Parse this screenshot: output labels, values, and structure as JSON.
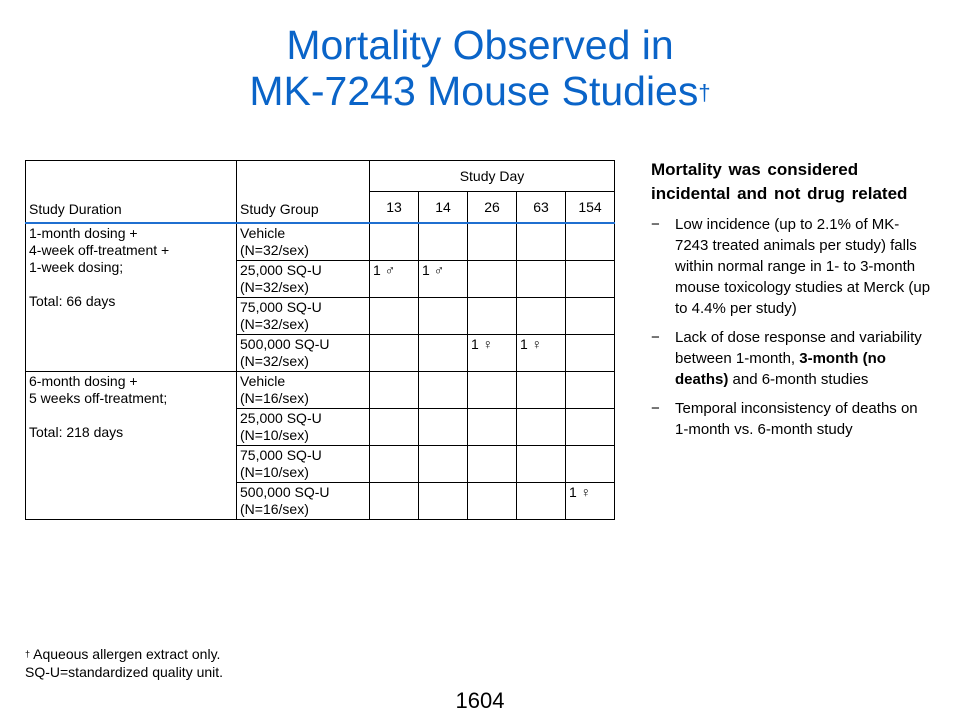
{
  "title": {
    "line1": "Mortality Observed in",
    "line2": "MK-7243 Mouse Studies",
    "dagger": "†"
  },
  "table": {
    "study_day_header": "Study Day",
    "col_duration": "Study Duration",
    "col_group": "Study Group",
    "days": [
      "13",
      "14",
      "26",
      "63",
      "154"
    ],
    "studies": [
      {
        "duration_lines": [
          "1-month dosing +",
          "4-week off-treatment +",
          "1-week dosing;",
          "",
          "Total: 66 days"
        ],
        "groups": [
          {
            "name": "Vehicle",
            "n": "(N=32/sex)",
            "cells": [
              "",
              "",
              "",
              "",
              ""
            ]
          },
          {
            "name": "25,000 SQ-U",
            "n": "(N=32/sex)",
            "cells": [
              "1 ♂",
              "1 ♂",
              "",
              "",
              ""
            ]
          },
          {
            "name": "75,000 SQ-U",
            "n": "(N=32/sex)",
            "cells": [
              "",
              "",
              "",
              "",
              ""
            ]
          },
          {
            "name": "500,000 SQ-U",
            "n": "(N=32/sex)",
            "cells": [
              "",
              "",
              "1 ♀",
              "1 ♀",
              ""
            ]
          }
        ]
      },
      {
        "duration_lines": [
          "6-month dosing +",
          "5 weeks off-treatment;",
          "",
          "Total: 218 days"
        ],
        "groups": [
          {
            "name": "Vehicle",
            "n": "(N=16/sex)",
            "cells": [
              "",
              "",
              "",
              "",
              ""
            ]
          },
          {
            "name": "25,000 SQ-U",
            "n": "(N=10/sex)",
            "cells": [
              "",
              "",
              "",
              "",
              ""
            ]
          },
          {
            "name": "75,000 SQ-U",
            "n": "(N=10/sex)",
            "cells": [
              "",
              "",
              "",
              "",
              ""
            ]
          },
          {
            "name": "500,000 SQ-U",
            "n": "(N=16/sex)",
            "cells": [
              "",
              "",
              "",
              "",
              "1 ♀"
            ]
          }
        ]
      }
    ]
  },
  "side": {
    "heading": "Mortality was considered incidental and not drug related",
    "bullets": [
      {
        "parts": [
          {
            "text": "Low incidence (up to 2.1% of MK-7243 treated animals per study) falls within normal range in 1- to 3-month mouse toxicology studies at Merck (up to 4.4% per study)",
            "bold": false
          }
        ]
      },
      {
        "parts": [
          {
            "text": "Lack of dose response and variability between 1-month, ",
            "bold": false
          },
          {
            "text": "3-month (no deaths)",
            "bold": true
          },
          {
            "text": " and 6-month studies",
            "bold": false
          }
        ]
      },
      {
        "parts": [
          {
            "text": "Temporal inconsistency of deaths on 1-month vs. 6-month study",
            "bold": false
          }
        ]
      }
    ]
  },
  "footnote": {
    "mark": "†",
    "line1": " Aqueous allergen extract only.",
    "line2": "SQ-U=standardized quality unit."
  },
  "page_number": "1604"
}
